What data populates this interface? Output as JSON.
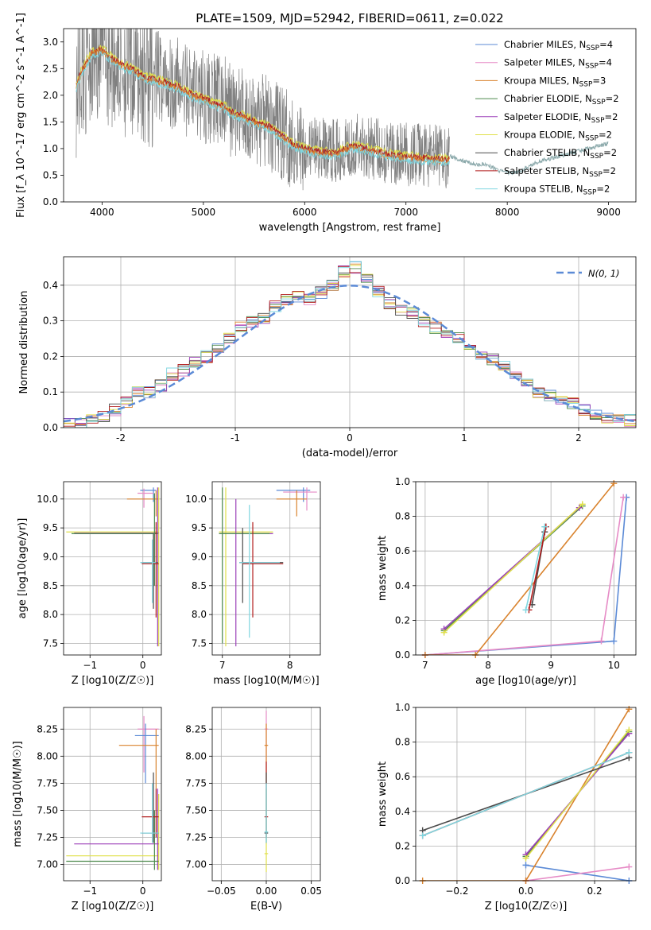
{
  "figure": {
    "title": "PLATE=1509, MJD=52942, FIBERID=0611, z=0.022"
  },
  "colors": {
    "Chabrier MILES": "#5b8ad6",
    "Salpeter MILES": "#e68bc6",
    "Kroupa MILES": "#d9832e",
    "Chabrier ELODIE": "#4d8a4d",
    "Salpeter ELODIE": "#9b3fb8",
    "Kroupa ELODIE": "#e0e04a",
    "Chabrier STELIB": "#4a4a4a",
    "Salpeter STELIB": "#b21e1e",
    "Kroupa STELIB": "#7fd6e0",
    "data": "#808080",
    "normal": "#5b8ad6"
  },
  "chart_data": [
    {
      "id": "spectrum",
      "type": "line",
      "title": "PLATE=1509, MJD=52942, FIBERID=0611, z=0.022",
      "xlabel": "wavelength [Angstrom, rest frame]",
      "ylabel": "Flux [f_λ 10^-17 erg cm^-2 s^-1 A^-1]",
      "xlim": [
        3620,
        9270
      ],
      "ylim": [
        0,
        3.25
      ],
      "xticks": [
        4000,
        5000,
        6000,
        7000,
        8000,
        9000
      ],
      "yticks": [
        0.0,
        0.5,
        1.0,
        1.5,
        2.0,
        2.5,
        3.0
      ],
      "grid": false,
      "legend_position": "top-right",
      "legend": [
        "Chabrier MILES, N_SSP=4",
        "Salpeter MILES, N_SSP=4",
        "Kroupa MILES, N_SSP=3",
        "Chabrier ELODIE, N_SSP=2",
        "Salpeter ELODIE, N_SSP=2",
        "Kroupa ELODIE, N_SSP=2",
        "Chabrier STELIB, N_SSP=2",
        "Salpeter STELIB, N_SSP=2",
        "Kroupa STELIB, N_SSP=2"
      ],
      "model_continuum": {
        "x": [
          3740,
          3800,
          3900,
          4000,
          4100,
          4200,
          4300,
          4400,
          4500,
          4600,
          4700,
          4800,
          4900,
          5000,
          5100,
          5200,
          5300,
          5400,
          5500,
          5600,
          5700,
          5800,
          5900,
          6000,
          6100,
          6200,
          6300,
          6400,
          6500,
          6600,
          6700,
          6800,
          6900,
          7000,
          7100,
          7200,
          7300,
          7400
        ],
        "y": [
          2.2,
          2.5,
          2.85,
          2.9,
          2.75,
          2.6,
          2.55,
          2.4,
          2.35,
          2.3,
          2.25,
          2.15,
          2.05,
          2.0,
          1.9,
          1.85,
          1.7,
          1.65,
          1.55,
          1.5,
          1.4,
          1.25,
          1.1,
          1.05,
          1.0,
          0.98,
          0.95,
          1.05,
          1.1,
          1.05,
          1.0,
          0.95,
          0.92,
          0.9,
          0.88,
          0.86,
          0.85,
          0.85
        ]
      },
      "data_continuum": {
        "x": [
          7400,
          7500,
          7600,
          7700,
          7800,
          7900,
          8000,
          8100,
          8200,
          8300,
          8400,
          8500,
          8600,
          8700,
          8800,
          8900,
          9000
        ],
        "y": [
          0.9,
          0.8,
          0.75,
          0.7,
          0.7,
          0.6,
          0.55,
          0.55,
          0.65,
          0.75,
          0.8,
          0.85,
          0.9,
          0.95,
          1.0,
          1.05,
          1.1
        ]
      }
    },
    {
      "id": "residuals",
      "type": "bar",
      "xlabel": "(data-model)/error",
      "ylabel": "Normed distribution",
      "xlim": [
        -2.5,
        2.5
      ],
      "ylim": [
        0,
        0.48
      ],
      "xticks": [
        -2,
        -1,
        0,
        1,
        2
      ],
      "yticks": [
        0.0,
        0.1,
        0.2,
        0.3,
        0.4
      ],
      "grid": true,
      "legend_position": "top-right",
      "legend": [
        "N(0, 1)"
      ],
      "bin_width": 0.1,
      "bins_start": -2.5,
      "values": [
        0.01,
        0.01,
        0.02,
        0.03,
        0.05,
        0.07,
        0.1,
        0.1,
        0.12,
        0.15,
        0.16,
        0.18,
        0.2,
        0.22,
        0.25,
        0.28,
        0.3,
        0.31,
        0.34,
        0.36,
        0.37,
        0.36,
        0.38,
        0.4,
        0.44,
        0.45,
        0.42,
        0.38,
        0.35,
        0.33,
        0.32,
        0.3,
        0.28,
        0.27,
        0.25,
        0.22,
        0.2,
        0.19,
        0.17,
        0.15,
        0.12,
        0.1,
        0.09,
        0.08,
        0.07,
        0.05,
        0.04,
        0.03,
        0.03,
        0.02
      ]
    },
    {
      "id": "age-vs-Z",
      "type": "scatter",
      "xlabel": "Z [log10(Z/Z☉)]",
      "ylabel": "age [log10(age/yr)]",
      "xlim": [
        -1.5,
        0.35
      ],
      "ylim": [
        7.3,
        10.3
      ],
      "xticks": [
        -1,
        0
      ],
      "yticks": [
        7.5,
        8.0,
        8.5,
        9.0,
        9.5,
        10.0
      ],
      "grid": true
    },
    {
      "id": "age-vs-mass",
      "type": "scatter",
      "xlabel": "mass [log10(M/M☉)]",
      "xlim": [
        6.85,
        8.45
      ],
      "ylim": [
        7.3,
        10.3
      ],
      "xticks": [
        7,
        8
      ],
      "yticks": [
        7.5,
        8.0,
        8.5,
        9.0,
        9.5,
        10.0
      ],
      "grid": true
    },
    {
      "id": "weight-vs-age",
      "type": "line",
      "xlabel": "age [log10(age/yr)]",
      "ylabel": "mass weight",
      "xlim": [
        6.85,
        10.35
      ],
      "ylim": [
        0,
        1.0
      ],
      "xticks": [
        7,
        8,
        9,
        10
      ],
      "yticks": [
        0.0,
        0.2,
        0.4,
        0.6,
        0.8,
        1.0
      ],
      "grid": true,
      "series": [
        {
          "name": "Chabrier MILES",
          "x": [
            7.0,
            10.0,
            10.2
          ],
          "y": [
            0.0,
            0.08,
            0.91
          ]
        },
        {
          "name": "Salpeter MILES",
          "x": [
            7.0,
            9.8,
            10.15
          ],
          "y": [
            0.0,
            0.08,
            0.91
          ]
        },
        {
          "name": "Kroupa MILES",
          "x": [
            7.0,
            7.8,
            10.0
          ],
          "y": [
            0.0,
            0.0,
            0.99
          ]
        },
        {
          "name": "Chabrier ELODIE",
          "x": [
            7.3,
            9.5
          ],
          "y": [
            0.14,
            0.86
          ]
        },
        {
          "name": "Salpeter ELODIE",
          "x": [
            7.3,
            9.45
          ],
          "y": [
            0.15,
            0.85
          ]
        },
        {
          "name": "Kroupa ELODIE",
          "x": [
            7.3,
            9.5
          ],
          "y": [
            0.13,
            0.87
          ]
        },
        {
          "name": "Chabrier STELIB",
          "x": [
            8.7,
            8.9
          ],
          "y": [
            0.29,
            0.71
          ]
        },
        {
          "name": "Salpeter STELIB",
          "x": [
            8.65,
            8.92
          ],
          "y": [
            0.26,
            0.74
          ]
        },
        {
          "name": "Kroupa STELIB",
          "x": [
            8.6,
            8.9
          ],
          "y": [
            0.26,
            0.74
          ]
        }
      ]
    },
    {
      "id": "mass-vs-Z",
      "type": "scatter",
      "xlabel": "Z [log10(Z/Z☉)]",
      "ylabel": "mass [log10(M/M☉)]",
      "xlim": [
        -1.5,
        0.35
      ],
      "ylim": [
        6.85,
        8.45
      ],
      "xticks": [
        -1,
        0
      ],
      "yticks": [
        7.0,
        7.25,
        7.5,
        7.75,
        8.0,
        8.25
      ],
      "grid": true
    },
    {
      "id": "mass-vs-ebv",
      "type": "scatter",
      "xlabel": "E(B-V)",
      "xlim": [
        -0.06,
        0.06
      ],
      "ylim": [
        6.85,
        8.45
      ],
      "xticks": [
        -0.05,
        0.0,
        0.05
      ],
      "yticks": [
        7.0,
        7.25,
        7.5,
        7.75,
        8.0,
        8.25
      ],
      "grid": true
    },
    {
      "id": "weight-vs-Z",
      "type": "line",
      "xlabel": "Z [log10(Z/Z☉)]",
      "ylabel": "mass weight",
      "xlim": [
        -0.32,
        0.32
      ],
      "ylim": [
        0,
        1.0
      ],
      "xticks": [
        -0.2,
        0.0,
        0.2
      ],
      "yticks": [
        0.0,
        0.2,
        0.4,
        0.6,
        0.8,
        1.0
      ],
      "grid": true,
      "series": [
        {
          "name": "Chabrier MILES",
          "x": [
            0.0,
            0.3
          ],
          "y": [
            0.09,
            0.0
          ]
        },
        {
          "name": "Salpeter MILES",
          "x": [
            0.0,
            0.3
          ],
          "y": [
            0.0,
            0.08
          ]
        },
        {
          "name": "Kroupa MILES",
          "x": [
            -0.3,
            0.0,
            0.3
          ],
          "y": [
            0.0,
            0.0,
            0.99
          ]
        },
        {
          "name": "Chabrier ELODIE",
          "x": [
            0.0,
            0.3
          ],
          "y": [
            0.14,
            0.86
          ]
        },
        {
          "name": "Salpeter ELODIE",
          "x": [
            0.0,
            0.3
          ],
          "y": [
            0.15,
            0.85
          ]
        },
        {
          "name": "Kroupa ELODIE",
          "x": [
            0.0,
            0.3
          ],
          "y": [
            0.13,
            0.87
          ]
        },
        {
          "name": "Chabrier STELIB",
          "x": [
            -0.3,
            0.3
          ],
          "y": [
            0.29,
            0.71
          ]
        },
        {
          "name": "Salpeter STELIB",
          "x": [
            -0.3,
            0.3
          ],
          "y": [
            0.26,
            0.74
          ]
        },
        {
          "name": "Kroupa STELIB",
          "x": [
            -0.3,
            0.3
          ],
          "y": [
            0.26,
            0.74
          ]
        }
      ]
    }
  ]
}
